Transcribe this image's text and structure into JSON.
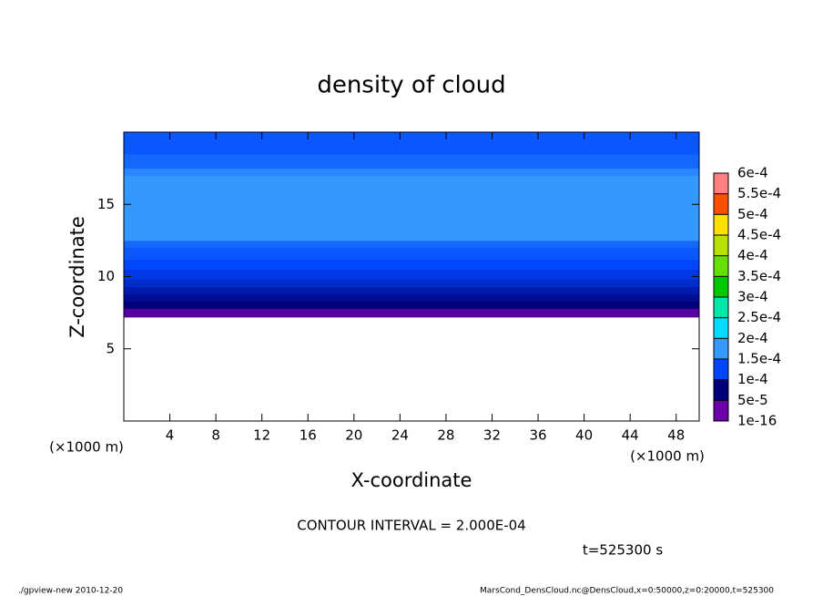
{
  "chart_data": {
    "type": "contour",
    "title": "density of cloud",
    "x_label": "X-coordinate",
    "y_label": "Z-coordinate",
    "x_unit_label": "(×1000 m)",
    "xlim": [
      0,
      50
    ],
    "xticks": [
      4,
      8,
      12,
      16,
      20,
      24,
      28,
      32,
      36,
      40,
      44,
      48
    ],
    "ylim": [
      0,
      20
    ],
    "yticks": [
      5,
      10,
      15
    ],
    "y_edges": [
      7.2,
      7.8,
      8.3,
      8.8,
      9.3,
      9.8,
      10.5,
      11.2,
      12,
      12.5,
      17,
      17.5,
      18.5,
      20
    ],
    "values": [
      1e-05,
      5e-05,
      6e-05,
      7e-05,
      8e-05,
      9e-05,
      0.0001,
      0.00011,
      0.00012,
      0.00015,
      0.00014,
      0.00012,
      0.00011
    ],
    "colorbar_ticks": [
      {
        "value": 1e-16,
        "label": "1e-16"
      },
      {
        "value": 5e-05,
        "label": "5e-5"
      },
      {
        "value": 0.0001,
        "label": "1e-4"
      },
      {
        "value": 0.00015,
        "label": "1.5e-4"
      },
      {
        "value": 0.0002,
        "label": "2e-4"
      },
      {
        "value": 0.00025,
        "label": "2.5e-4"
      },
      {
        "value": 0.0003,
        "label": "3e-4"
      },
      {
        "value": 0.00035,
        "label": "3.5e-4"
      },
      {
        "value": 0.0004,
        "label": "4e-4"
      },
      {
        "value": 0.00045,
        "label": "4.5e-4"
      },
      {
        "value": 0.0005,
        "label": "5e-4"
      },
      {
        "value": 0.00055,
        "label": "5.5e-4"
      },
      {
        "value": 0.0006,
        "label": "6e-4"
      }
    ],
    "level_colors": [
      "#6a00a8",
      "#00007a",
      "#0046ff",
      "#3399ff",
      "#00dcff",
      "#00e8a8",
      "#00c800",
      "#66e000",
      "#b8e000",
      "#ffe000",
      "#ff5000",
      "#ff8080",
      "#ffb0b0"
    ],
    "contour_interval_label": "CONTOUR INTERVAL = 2.000E-04",
    "time_label": "t=525300 s",
    "footer_left": "./gpview-new  2010-12-20",
    "footer_right": "MarsCond_DensCloud.nc@DensCloud,x=0:50000,z=0:20000,t=525300"
  }
}
